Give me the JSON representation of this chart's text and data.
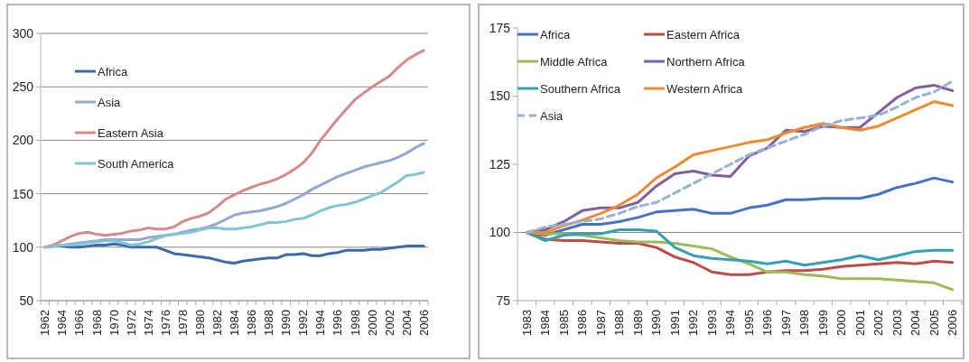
{
  "chart_data": [
    {
      "type": "line",
      "categories": [
        "1962",
        null,
        "1964",
        null,
        "1966",
        null,
        "1968",
        null,
        "1970",
        null,
        "1972",
        null,
        "1974",
        null,
        "1976",
        null,
        "1978",
        null,
        "1980",
        null,
        "1982",
        null,
        "1984",
        null,
        "1986",
        null,
        "1988",
        null,
        "1990",
        null,
        "1992",
        null,
        "1994",
        null,
        "1996",
        null,
        "1998",
        null,
        "2000",
        null,
        "2002",
        null,
        "2004",
        null,
        "2006"
      ],
      "ylim": [
        50,
        300
      ],
      "yticks": [
        50,
        100,
        150,
        200,
        250,
        300
      ],
      "grid": "y",
      "legend": "top left",
      "series": [
        {
          "name": "Africa",
          "color": "#3a6aa8",
          "values": [
            100,
            101,
            101,
            100,
            100,
            101,
            102,
            102,
            103,
            102,
            100,
            100,
            100,
            100,
            97,
            94,
            93,
            92,
            91,
            90,
            88,
            86,
            85,
            87,
            88,
            89,
            90,
            90,
            93,
            93,
            94,
            92,
            92,
            94,
            95,
            97,
            97,
            97,
            98,
            98,
            99,
            100,
            101,
            101,
            101
          ]
        },
        {
          "name": "Asia",
          "color": "#8fa8d4",
          "values": [
            100,
            101,
            102,
            103,
            104,
            105,
            106,
            107,
            107,
            107,
            107,
            107,
            109,
            110,
            111,
            112,
            114,
            116,
            117,
            119,
            122,
            126,
            130,
            132,
            133,
            134,
            136,
            138,
            141,
            145,
            149,
            154,
            158,
            162,
            166,
            169,
            172,
            175,
            177,
            179,
            181,
            184,
            188,
            193,
            197
          ]
        },
        {
          "name": "Eastern Asia",
          "color": "#d48a88",
          "values": [
            100,
            102,
            106,
            110,
            113,
            114,
            112,
            111,
            112,
            113,
            115,
            116,
            118,
            117,
            117,
            119,
            124,
            127,
            129,
            132,
            138,
            145,
            149,
            153,
            156,
            159,
            161,
            164,
            168,
            173,
            179,
            188,
            200,
            210,
            220,
            229,
            238,
            244,
            250,
            255,
            260,
            268,
            275,
            280,
            284
          ]
        },
        {
          "name": "South America",
          "color": "#7fc4d8",
          "values": [
            100,
            101,
            102,
            102,
            103,
            104,
            105,
            106,
            106,
            104,
            102,
            103,
            105,
            108,
            111,
            112,
            113,
            114,
            116,
            118,
            118,
            117,
            117,
            118,
            119,
            121,
            123,
            123,
            124,
            126,
            127,
            130,
            134,
            137,
            139,
            140,
            142,
            145,
            148,
            151,
            156,
            161,
            167,
            168,
            170
          ]
        }
      ]
    },
    {
      "type": "line",
      "categories": [
        "1983",
        "1984",
        "1985",
        "1986",
        "1987",
        "1988",
        "1989",
        "1990",
        "1991",
        "1992",
        "1993",
        "1994",
        "1995",
        "1996",
        "1997",
        "1998",
        "1999",
        "2000",
        "2001",
        "2002",
        "2003",
        "2004",
        "2005",
        "2006"
      ],
      "ylim": [
        75,
        175
      ],
      "yticks": [
        75,
        100,
        125,
        150,
        175
      ],
      "legend": "top",
      "ref_lines": [
        {
          "axis": "y",
          "value": 100
        }
      ],
      "series": [
        {
          "name": "Africa",
          "color": "#4472c4",
          "values": [
            100,
            99,
            101,
            103,
            103,
            104,
            105.5,
            107.5,
            108,
            108.5,
            107,
            107,
            109,
            110,
            112,
            112,
            112.5,
            112.5,
            112.5,
            114,
            116.5,
            118,
            120,
            118.5
          ]
        },
        {
          "name": "Eastern Africa",
          "color": "#be4b48",
          "values": [
            100,
            97.5,
            97,
            97,
            96.5,
            96,
            96,
            94.5,
            91,
            89,
            85.5,
            84.5,
            84.5,
            85.5,
            86,
            86,
            86.5,
            87.5,
            88,
            88.5,
            89,
            88.5,
            89.5,
            89
          ]
        },
        {
          "name": "Middle Africa",
          "color": "#9bbb59",
          "values": [
            100,
            99.5,
            99.5,
            99,
            98,
            97,
            96.5,
            96.5,
            96,
            95,
            94,
            91,
            88.5,
            85.5,
            85.5,
            84.5,
            84,
            83,
            83,
            83,
            82.5,
            82,
            81.5,
            79
          ]
        },
        {
          "name": "Northern Africa",
          "color": "#7f5fa0",
          "values": [
            100,
            101,
            104,
            108,
            109,
            109,
            111,
            117,
            121.5,
            122.5,
            121,
            120.5,
            128,
            131,
            137.5,
            137,
            139,
            138.5,
            138.5,
            144,
            149.5,
            153,
            154,
            152
          ]
        },
        {
          "name": "Southern Africa",
          "color": "#33a0b8",
          "values": [
            100,
            97,
            99,
            99.5,
            99.5,
            101,
            101,
            100.5,
            94.5,
            91.5,
            90.5,
            90,
            89.5,
            88.5,
            89.5,
            88,
            89,
            90,
            91.5,
            90,
            91.5,
            93,
            93.5,
            93.5
          ]
        },
        {
          "name": "Western Africa",
          "color": "#f08a30",
          "values": [
            100,
            100,
            102.5,
            104.5,
            107,
            110,
            114,
            120,
            124,
            128.5,
            130,
            131.5,
            133,
            134,
            136.5,
            138.5,
            140,
            138.5,
            137.5,
            139,
            142,
            145,
            148,
            146.5
          ]
        },
        {
          "name": "Asia",
          "color": "#95b3d7",
          "line_style": "dashed",
          "values": [
            100,
            102,
            103,
            104,
            105,
            107,
            109.5,
            111,
            114.5,
            118,
            121.5,
            125,
            128.5,
            131,
            133.5,
            136,
            139,
            141,
            142,
            143,
            146,
            149.5,
            151.5,
            155.5
          ]
        }
      ]
    }
  ]
}
